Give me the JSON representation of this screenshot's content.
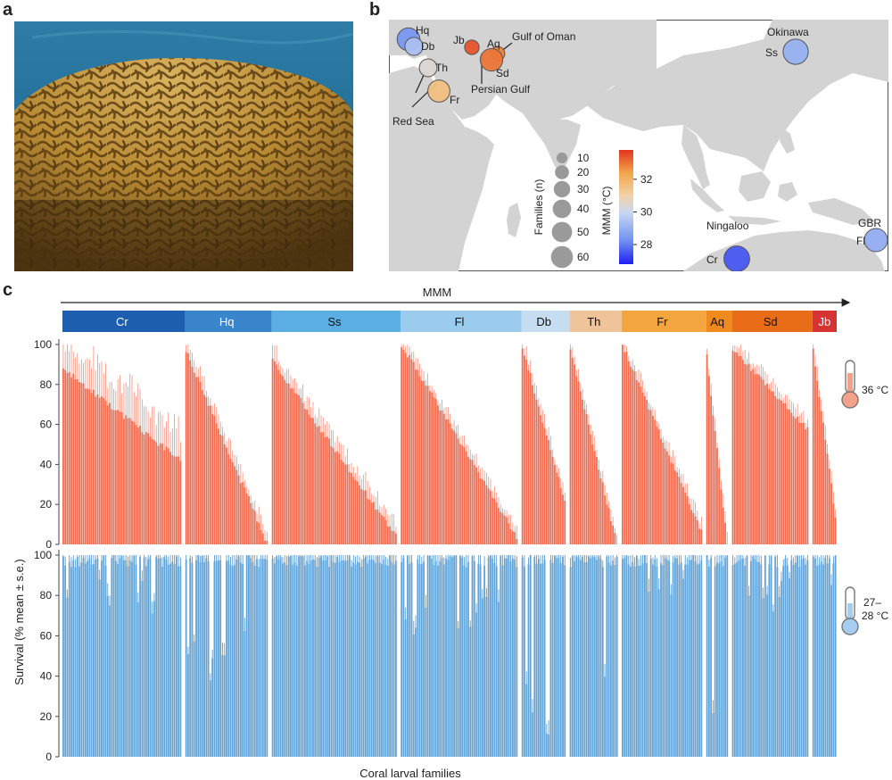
{
  "panels": {
    "a": "a",
    "b": "b",
    "c": "c"
  },
  "photo": {
    "subject": "brain-coral-photo"
  },
  "map": {
    "sites": [
      {
        "code": "Hq",
        "mmm": 28.4,
        "families": 41
      },
      {
        "code": "Db",
        "mmm": 29.4,
        "families": 23
      },
      {
        "code": "Th",
        "mmm": 30.4,
        "families": 22
      },
      {
        "code": "Fr",
        "mmm": 31.6,
        "families": 38
      },
      {
        "code": "Jb",
        "mmm": 33.4,
        "families": 13
      },
      {
        "code": "Aq",
        "mmm": 32.8,
        "families": 12
      },
      {
        "code": "Sd",
        "mmm": 33.0,
        "families": 40
      },
      {
        "code": "Ss",
        "mmm": 29.0,
        "families": 52
      },
      {
        "code": "Fl",
        "mmm": 28.9,
        "families": 43
      },
      {
        "code": "Cr",
        "mmm": 27.5,
        "families": 55
      }
    ],
    "region_labels": [
      "Gulf of Oman",
      "Persian Gulf",
      "Red Sea",
      "Okinawa",
      "Ningaloo",
      "GBR"
    ],
    "size_legend": {
      "title": "Families (n)",
      "values": [
        10,
        20,
        30,
        40,
        50,
        60
      ]
    },
    "color_legend": {
      "title": "MMM (°C)",
      "ticks": [
        28,
        30,
        32
      ],
      "range": [
        26.8,
        33.8
      ]
    }
  },
  "chart_data": {
    "type": "bar",
    "xlabel": "Coral larval families",
    "ylabel": "Survival (% mean ± s.e.)",
    "gradient_label": "MMM",
    "ylim": [
      0,
      100
    ],
    "yticks": [
      0,
      20,
      40,
      60,
      80,
      100
    ],
    "groups": [
      {
        "code": "Cr",
        "color": "#1d5fae",
        "text": "#ffffff",
        "n": 59,
        "hot_start": 88,
        "hot_end": 42,
        "hot_shape": 1.0,
        "cool_min": 70,
        "err": 20
      },
      {
        "code": "Hq",
        "color": "#3a85cc",
        "text": "#ffffff",
        "n": 41,
        "hot_start": 97,
        "hot_end": 1,
        "hot_shape": 1.0,
        "cool_min": 32,
        "err": 8
      },
      {
        "code": "Ss",
        "color": "#5aaee3",
        "text": "#111111",
        "n": 62,
        "hot_start": 92,
        "hot_end": 4,
        "hot_shape": 1.0,
        "cool_min": 95,
        "err": 8
      },
      {
        "code": "Fl",
        "color": "#9bcbed",
        "text": "#111111",
        "n": 58,
        "hot_start": 100,
        "hot_end": 4,
        "hot_shape": 1.0,
        "cool_min": 60,
        "err": 6
      },
      {
        "code": "Db",
        "color": "#c6dcf1",
        "text": "#111111",
        "n": 22,
        "hot_start": 99,
        "hot_end": 22,
        "hot_shape": 1.0,
        "cool_min": 10,
        "err": 6
      },
      {
        "code": "Th",
        "color": "#f0c49a",
        "text": "#111111",
        "n": 24,
        "hot_start": 98,
        "hot_end": 0,
        "hot_shape": 1.0,
        "cool_min": 12,
        "err": 6
      },
      {
        "code": "Fr",
        "color": "#f3a640",
        "text": "#111111",
        "n": 40,
        "hot_start": 100,
        "hot_end": 6,
        "hot_shape": 1.0,
        "cool_min": 75,
        "err": 6
      },
      {
        "code": "Aq",
        "color": "#f08a1e",
        "text": "#111111",
        "n": 11,
        "hot_start": 94,
        "hot_end": 0,
        "hot_shape": 1.0,
        "cool_min": 5,
        "err": 6
      },
      {
        "code": "Sd",
        "color": "#e96c16",
        "text": "#111111",
        "n": 38,
        "hot_start": 98,
        "hot_end": 58,
        "hot_shape": 1.0,
        "cool_min": 72,
        "err": 6
      },
      {
        "code": "Jb",
        "color": "#d63434",
        "text": "#ffffff",
        "n": 12,
        "hot_start": 98,
        "hot_end": 14,
        "hot_shape": 1.0,
        "cool_min": 80,
        "err": 6
      }
    ],
    "conditions": [
      {
        "label": "36 °C",
        "bar_color": "#f36c4f",
        "err_color": "#f58f7c"
      },
      {
        "label": "27–\n28 °C",
        "label_line1": "27–",
        "label_line2": "28 °C",
        "bar_color": "#62a4d7",
        "err_color": "#4f92c9"
      }
    ]
  }
}
